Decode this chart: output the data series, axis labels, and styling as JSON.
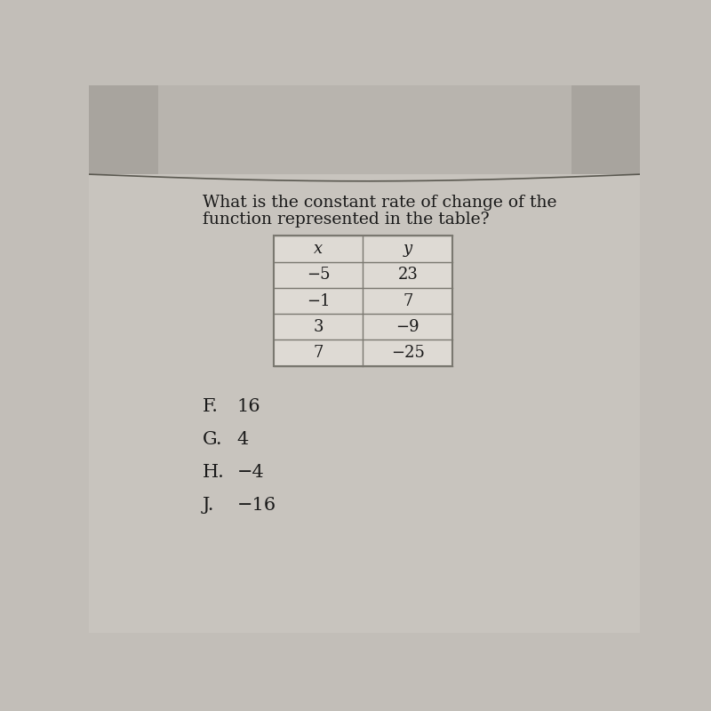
{
  "question_line1": "What is the constant rate of change of the",
  "question_line2": "function represented in the table?",
  "table_headers": [
    "x",
    "y"
  ],
  "table_data": [
    [
      "−5",
      "23"
    ],
    [
      "−1",
      "7"
    ],
    [
      "3",
      "−9"
    ],
    [
      "7",
      "−25"
    ]
  ],
  "answer_choices": [
    [
      "F.",
      "16"
    ],
    [
      "G.",
      "4"
    ],
    [
      "H.",
      "−4"
    ],
    [
      "J.",
      "−16"
    ]
  ],
  "top_bg_color": "#b8b4ae",
  "paper_color": "#c8c4be",
  "main_bg_color": "#c2beb8",
  "table_bg": "#dedad4",
  "table_border": "#7a7870",
  "text_color": "#1a1a1a",
  "question_fontsize": 13.5,
  "answer_fontsize": 15,
  "table_fontsize": 13
}
